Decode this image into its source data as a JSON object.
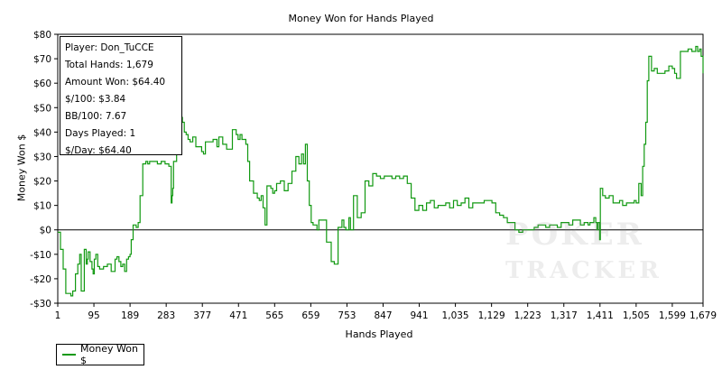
{
  "chart_data": {
    "type": "line",
    "title": "Money Won for Hands Played",
    "xlabel": "Hands Played",
    "ylabel": "Money Won $",
    "xlim": [
      1,
      1679
    ],
    "ylim": [
      -30,
      80
    ],
    "x_ticks": [
      1,
      95,
      189,
      283,
      377,
      471,
      565,
      659,
      753,
      847,
      941,
      1035,
      1129,
      1223,
      1317,
      1411,
      1505,
      1599,
      1679
    ],
    "x_tick_labels": [
      "1",
      "95",
      "189",
      "283",
      "377",
      "471",
      "565",
      "659",
      "753",
      "847",
      "941",
      "1,035",
      "1,129",
      "1,223",
      "1,317",
      "1,411",
      "1,505",
      "1,599",
      "1,679"
    ],
    "y_ticks": [
      -30,
      -20,
      -10,
      0,
      10,
      20,
      30,
      40,
      50,
      60,
      70,
      80
    ],
    "y_tick_labels": [
      "-$30",
      "-$20",
      "-$10",
      "$0",
      "$10",
      "$20",
      "$30",
      "$40",
      "$50",
      "$60",
      "$70",
      "$80"
    ],
    "grid": false,
    "legend": "bottom-left",
    "series": [
      {
        "name": "Money Won $",
        "color": "#119911",
        "x": [
          1,
          8,
          15,
          22,
          28,
          35,
          40,
          47,
          53,
          58,
          62,
          70,
          75,
          78,
          80,
          85,
          90,
          93,
          96,
          100,
          105,
          110,
          120,
          130,
          140,
          150,
          155,
          160,
          165,
          170,
          175,
          180,
          185,
          189,
          192,
          197,
          205,
          210,
          215,
          222,
          230,
          235,
          240,
          250,
          260,
          270,
          280,
          290,
          296,
          298,
          300,
          302,
          310,
          318,
          325,
          330,
          335,
          340,
          345,
          352,
          360,
          368,
          375,
          380,
          385,
          395,
          405,
          415,
          420,
          430,
          440,
          450,
          455,
          465,
          470,
          475,
          480,
          490,
          495,
          500,
          510,
          520,
          525,
          530,
          535,
          540,
          545,
          555,
          560,
          565,
          570,
          580,
          590,
          600,
          610,
          620,
          628,
          635,
          640,
          645,
          650,
          655,
          660,
          665,
          670,
          675,
          680,
          690,
          700,
          712,
          720,
          730,
          740,
          745,
          750,
          753,
          758,
          762,
          770,
          780,
          790,
          800,
          805,
          810,
          820,
          830,
          840,
          850,
          860,
          870,
          880,
          890,
          900,
          910,
          920,
          930,
          940,
          950,
          960,
          970,
          980,
          990,
          1000,
          1010,
          1020,
          1030,
          1040,
          1050,
          1060,
          1070,
          1080,
          1090,
          1100,
          1110,
          1120,
          1130,
          1140,
          1150,
          1160,
          1170,
          1180,
          1190,
          1200,
          1210,
          1220,
          1230,
          1240,
          1250,
          1260,
          1270,
          1280,
          1290,
          1300,
          1310,
          1320,
          1330,
          1340,
          1350,
          1360,
          1370,
          1380,
          1385,
          1390,
          1395,
          1400,
          1403,
          1406,
          1410,
          1412,
          1418,
          1425,
          1435,
          1445,
          1455,
          1462,
          1470,
          1480,
          1490,
          1500,
          1505,
          1512,
          1518,
          1522,
          1526,
          1530,
          1534,
          1538,
          1545,
          1552,
          1560,
          1570,
          1580,
          1590,
          1599,
          1605,
          1610,
          1620,
          1630,
          1640,
          1650,
          1660,
          1665,
          1670,
          1674,
          1679
        ],
        "values": [
          -1,
          -8,
          -16,
          -26,
          -26,
          -27,
          -25,
          -18,
          -14,
          -10,
          -25,
          -8,
          -14,
          -12,
          -9,
          -13,
          -16,
          -18,
          -12,
          -10,
          -15,
          -16,
          -15,
          -14,
          -17,
          -12,
          -11,
          -13,
          -15,
          -14,
          -17,
          -12,
          -11,
          -10,
          -4,
          2,
          1,
          3,
          14,
          27,
          28,
          27,
          28,
          28,
          27,
          28,
          27,
          26,
          11,
          14,
          17,
          28,
          37,
          46,
          44,
          40,
          39,
          37,
          36,
          38,
          34,
          34,
          32,
          31,
          36,
          36,
          37,
          34,
          38,
          35,
          33,
          33,
          41,
          39,
          37,
          39,
          37,
          35,
          28,
          20,
          15,
          13,
          12,
          14,
          9,
          2,
          18,
          17,
          15,
          16,
          19,
          20,
          16,
          19,
          24,
          30,
          27,
          31,
          27,
          35,
          20,
          10,
          3,
          2,
          2,
          0,
          4,
          4,
          -5,
          -13,
          -14,
          1,
          4,
          1,
          0,
          0,
          5,
          0,
          14,
          5,
          7,
          20,
          20,
          18,
          23,
          22,
          21,
          22,
          22,
          21,
          22,
          21,
          22,
          19,
          13,
          8,
          10,
          8,
          11,
          12,
          9,
          10,
          10,
          11,
          9,
          12,
          10,
          11,
          13,
          9,
          11,
          11,
          11,
          12,
          12,
          11,
          7,
          6,
          5,
          3,
          3,
          0,
          -1,
          0,
          0,
          0,
          1,
          2,
          2,
          1,
          2,
          2,
          1,
          3,
          3,
          2,
          4,
          4,
          2,
          3,
          2,
          3,
          3,
          5,
          3,
          0,
          3,
          -4,
          17,
          14,
          13,
          14,
          11,
          11,
          12,
          10,
          11,
          11,
          12,
          11,
          19,
          14,
          26,
          35,
          44,
          61,
          71,
          65,
          66,
          64,
          64,
          65,
          67,
          66,
          64,
          62,
          73,
          73,
          74,
          73,
          75,
          73,
          74,
          71,
          64
        ]
      }
    ],
    "stats_box": [
      "Player: Don_TuCCE",
      "Total Hands: 1,679",
      "Amount Won: $64.40",
      "$/100: $3.84",
      "BB/100: 7.67",
      "Days Played: 1",
      "$/Day: $64.40"
    ],
    "watermark": [
      "POKER",
      "TRACKER"
    ]
  }
}
